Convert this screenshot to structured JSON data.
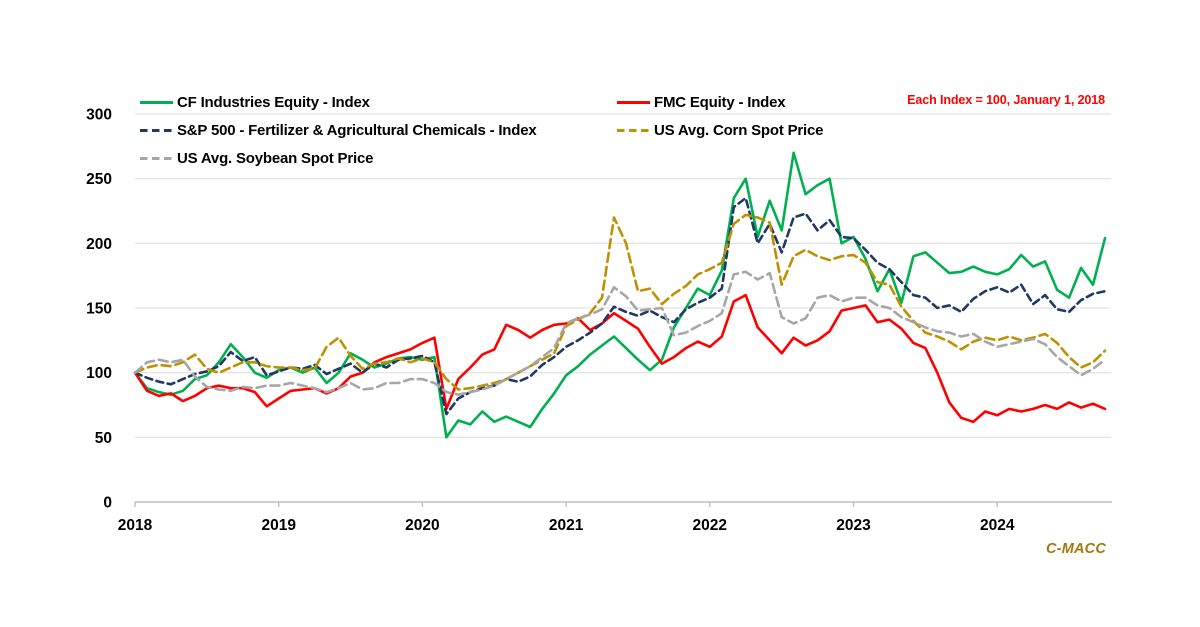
{
  "page": {
    "background": "#FFFFFF"
  },
  "annotation": {
    "text": "Each Index = 100, January 1, 2018",
    "color": "#FF0000"
  },
  "branding": {
    "text": "C-MACC",
    "color": "#A2790D"
  },
  "chart_data": {
    "type": "line",
    "title": "",
    "xlabel": "",
    "ylabel": "",
    "x_unit": "years, monthly samples Jan 2018 - Oct 2024",
    "x_range": [
      2018.0,
      2024.75
    ],
    "x_ticks": [
      2018,
      2019,
      2020,
      2021,
      2022,
      2023,
      2024
    ],
    "ylim": [
      0,
      300
    ],
    "y_ticks": [
      0,
      50,
      100,
      150,
      200,
      250,
      300
    ],
    "grid": true,
    "legend_position": "top-left",
    "grid_color": "#DCDCDC",
    "axis_color": "#BFBFBF",
    "series": [
      {
        "id": "cf-industries-equity",
        "name": "CF Industries Equity - Index",
        "color": "#00B050",
        "dash": "solid",
        "values": [
          100,
          88,
          85,
          83,
          86,
          95,
          98,
          108,
          122,
          112,
          100,
          96,
          102,
          104,
          100,
          104,
          92,
          100,
          115,
          110,
          104,
          107,
          111,
          112,
          110,
          112,
          50,
          63,
          60,
          70,
          62,
          66,
          62,
          58,
          72,
          84,
          98,
          105,
          114,
          121,
          128,
          119,
          110,
          102,
          110,
          135,
          150,
          165,
          160,
          179,
          235,
          250,
          205,
          233,
          210,
          270,
          238,
          245,
          250,
          200,
          205,
          188,
          163,
          180,
          154,
          190,
          193,
          185,
          177,
          178,
          182,
          178,
          176,
          180,
          191,
          182,
          186,
          164,
          158,
          181,
          168,
          204
        ]
      },
      {
        "id": "fmc-equity",
        "name": "FMC Equity - Index",
        "color": "#FF0000",
        "dash": "solid",
        "values": [
          100,
          86,
          82,
          84,
          78,
          82,
          88,
          90,
          88,
          88,
          85,
          74,
          80,
          86,
          87,
          88,
          84,
          88,
          97,
          100,
          108,
          112,
          115,
          118,
          123,
          127,
          72,
          95,
          104,
          114,
          118,
          137,
          133,
          127,
          133,
          137,
          138,
          142,
          133,
          138,
          146,
          140,
          134,
          120,
          107,
          112,
          119,
          124,
          120,
          128,
          155,
          160,
          135,
          125,
          115,
          127,
          121,
          125,
          132,
          148,
          150,
          152,
          139,
          141,
          134,
          123,
          119,
          100,
          77,
          65,
          62,
          70,
          67,
          72,
          70,
          72,
          75,
          72,
          77,
          73,
          76,
          72
        ]
      },
      {
        "id": "sp500-fertilizer-ag-chemicals",
        "name": "S&P 500 - Fertilizer & Agricultural Chemicals - Index",
        "color": "#1F3864",
        "dash": "7 4.5",
        "values": [
          100,
          96,
          93,
          91,
          95,
          99,
          101,
          105,
          116,
          109,
          112,
          98,
          101,
          104,
          103,
          106,
          99,
          103,
          107,
          100,
          107,
          104,
          110,
          111,
          113,
          108,
          68,
          80,
          85,
          88,
          90,
          95,
          93,
          97,
          106,
          112,
          120,
          125,
          131,
          138,
          151,
          147,
          144,
          148,
          143,
          139,
          149,
          154,
          158,
          165,
          228,
          235,
          200,
          215,
          193,
          220,
          223,
          210,
          218,
          205,
          204,
          195,
          185,
          180,
          170,
          160,
          158,
          150,
          152,
          147,
          157,
          163,
          166,
          162,
          168,
          153,
          160,
          149,
          147,
          156,
          161,
          163
        ]
      },
      {
        "id": "us-avg-corn-spot",
        "name": "US Avg. Corn Spot Price",
        "color": "#BF9000",
        "dash": "9 5",
        "values": [
          100,
          104,
          106,
          105,
          108,
          114,
          103,
          100,
          104,
          108,
          108,
          105,
          104,
          104,
          102,
          103,
          120,
          127,
          113,
          103,
          107,
          108,
          111,
          108,
          111,
          108,
          95,
          87,
          88,
          90,
          92,
          95,
          100,
          105,
          110,
          115,
          136,
          141,
          146,
          158,
          220,
          200,
          163,
          165,
          153,
          161,
          167,
          176,
          180,
          185,
          215,
          222,
          220,
          216,
          168,
          190,
          195,
          190,
          187,
          190,
          191,
          185,
          170,
          168,
          151,
          140,
          131,
          128,
          124,
          118,
          124,
          127,
          125,
          128,
          125,
          127,
          130,
          123,
          112,
          104,
          108,
          117
        ]
      },
      {
        "id": "us-avg-soybean-spot",
        "name": "US Avg. Soybean Spot Price",
        "color": "#A6A6A6",
        "dash": "9 5",
        "values": [
          100,
          108,
          110,
          108,
          110,
          97,
          89,
          87,
          86,
          89,
          88,
          90,
          90,
          92,
          90,
          88,
          85,
          88,
          92,
          87,
          88,
          92,
          92,
          95,
          95,
          92,
          85,
          83,
          85,
          87,
          90,
          95,
          100,
          105,
          112,
          119,
          138,
          142,
          145,
          149,
          166,
          159,
          148,
          149,
          150,
          129,
          131,
          136,
          140,
          146,
          176,
          178,
          172,
          177,
          143,
          138,
          142,
          158,
          160,
          155,
          158,
          158,
          152,
          150,
          143,
          139,
          135,
          132,
          131,
          128,
          130,
          124,
          120,
          122,
          124,
          126,
          122,
          112,
          105,
          98,
          103,
          110
        ]
      }
    ]
  }
}
